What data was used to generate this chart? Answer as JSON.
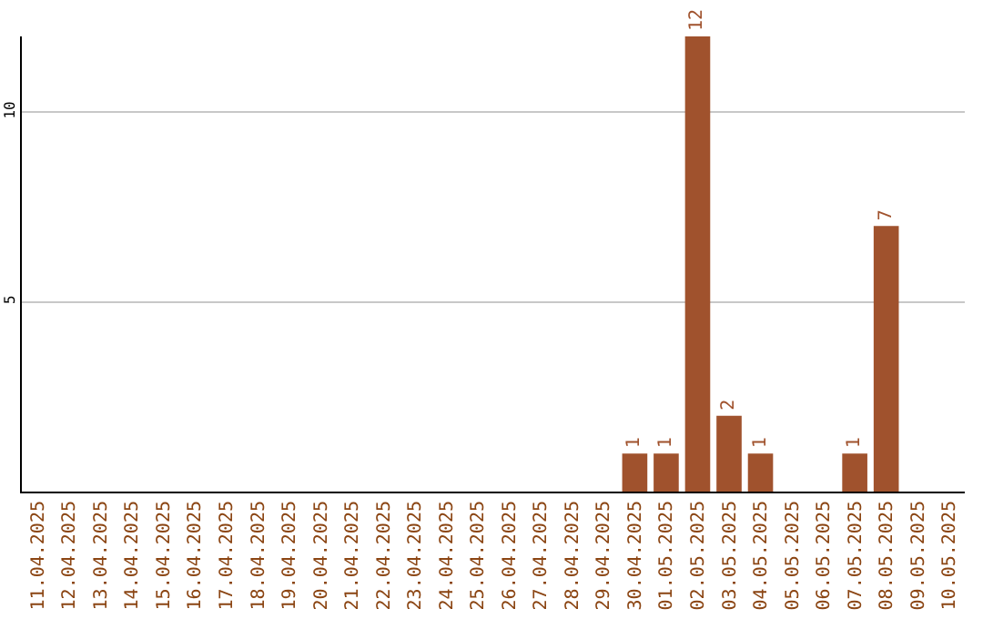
{
  "chart_data": {
    "type": "bar",
    "categories": [
      "11.04.2025",
      "12.04.2025",
      "13.04.2025",
      "14.04.2025",
      "15.04.2025",
      "16.04.2025",
      "17.04.2025",
      "18.04.2025",
      "19.04.2025",
      "20.04.2025",
      "21.04.2025",
      "22.04.2025",
      "23.04.2025",
      "24.04.2025",
      "25.04.2025",
      "26.04.2025",
      "27.04.2025",
      "28.04.2025",
      "29.04.2025",
      "30.04.2025",
      "01.05.2025",
      "02.05.2025",
      "03.05.2025",
      "04.05.2025",
      "05.05.2025",
      "06.05.2025",
      "07.05.2025",
      "08.05.2025",
      "09.05.2025",
      "10.05.2025"
    ],
    "values": [
      0,
      0,
      0,
      0,
      0,
      0,
      0,
      0,
      0,
      0,
      0,
      0,
      0,
      0,
      0,
      0,
      0,
      0,
      0,
      1,
      1,
      12,
      2,
      1,
      0,
      0,
      1,
      7,
      0,
      0
    ],
    "value_labels": [
      null,
      null,
      null,
      null,
      null,
      null,
      null,
      null,
      null,
      null,
      null,
      null,
      null,
      null,
      null,
      null,
      null,
      null,
      null,
      "1",
      "1",
      "12",
      "2",
      "1",
      null,
      null,
      "1",
      "7",
      null,
      null
    ],
    "color": "#a0522d",
    "ylim": [
      0,
      12
    ],
    "yticks": [
      5,
      10
    ],
    "grid": "y"
  }
}
